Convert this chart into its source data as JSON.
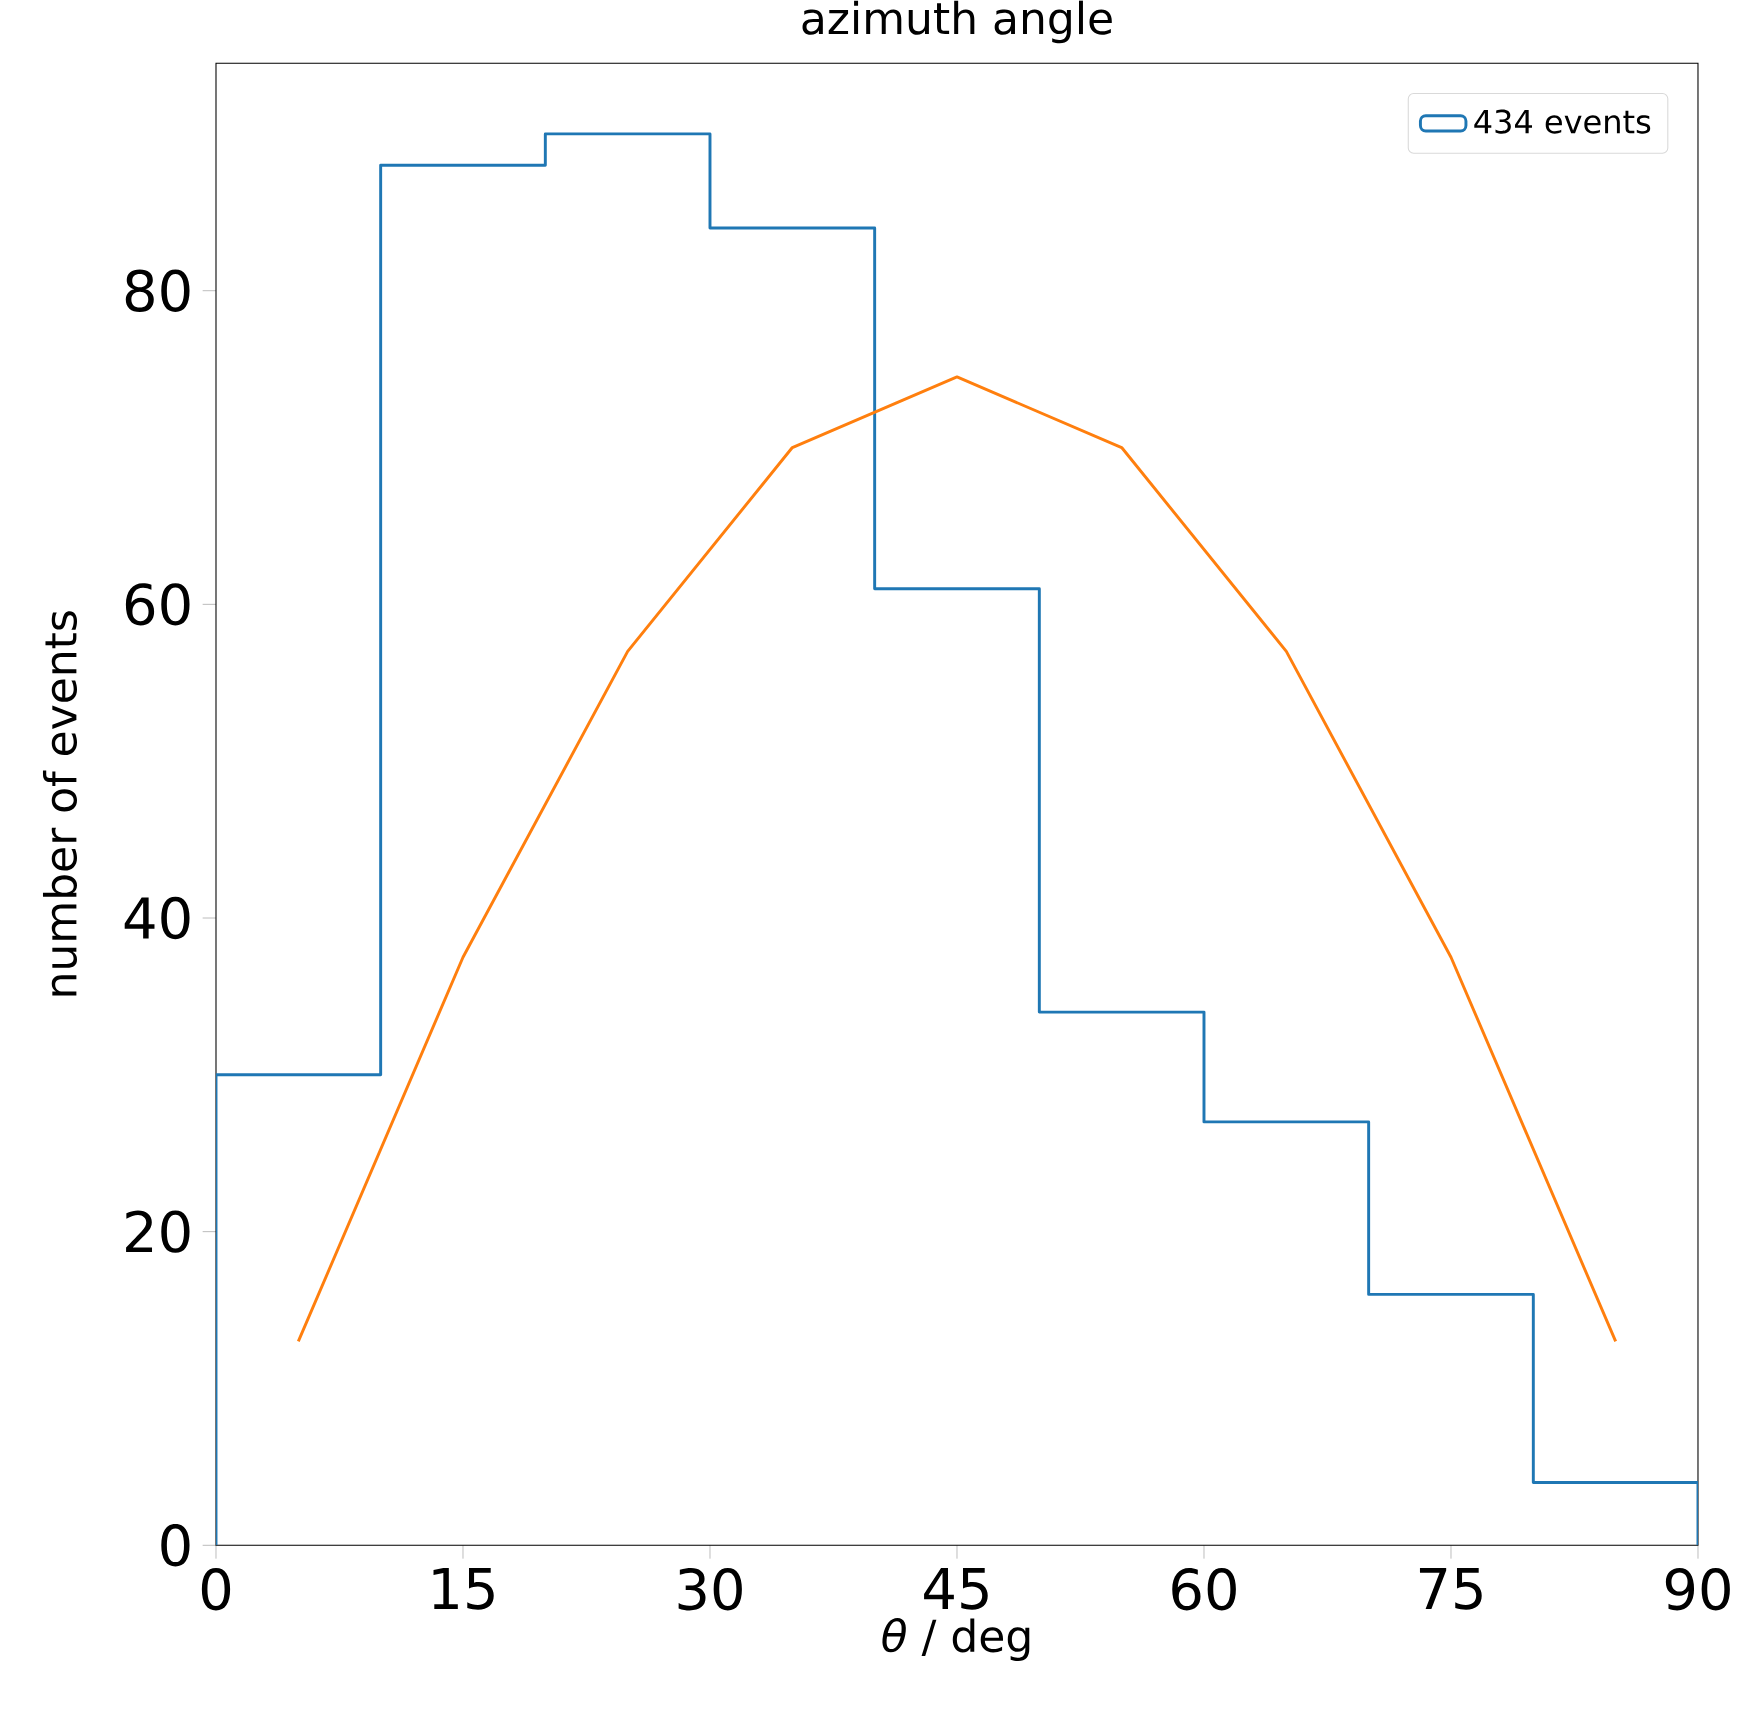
{
  "chart_data": {
    "type": "histogram",
    "title": "azimuth angle",
    "xlabel": "*θ* / deg",
    "ylabel": "number of events",
    "xlim": [
      0,
      90
    ],
    "ylim": [
      0,
      94.5
    ],
    "xticks": [
      0,
      15,
      30,
      45,
      60,
      75,
      90
    ],
    "yticks": [
      0,
      20,
      40,
      60,
      80
    ],
    "legend": "top right",
    "grid": false,
    "series": [
      {
        "type": "histogram",
        "name": "434 events",
        "color": "#1f77b4",
        "bins": [
          0,
          10,
          20,
          30,
          40,
          50,
          60,
          70,
          80,
          90
        ],
        "values": [
          30,
          88,
          90,
          84,
          61,
          34,
          27,
          16,
          4
        ]
      },
      {
        "type": "line",
        "color": "#ff7f0e",
        "x": [
          5,
          15,
          25,
          35,
          45,
          55,
          65,
          75,
          85
        ],
        "values": [
          13,
          37.5,
          57,
          70,
          74.5,
          70,
          57,
          37.5,
          13
        ]
      }
    ]
  }
}
